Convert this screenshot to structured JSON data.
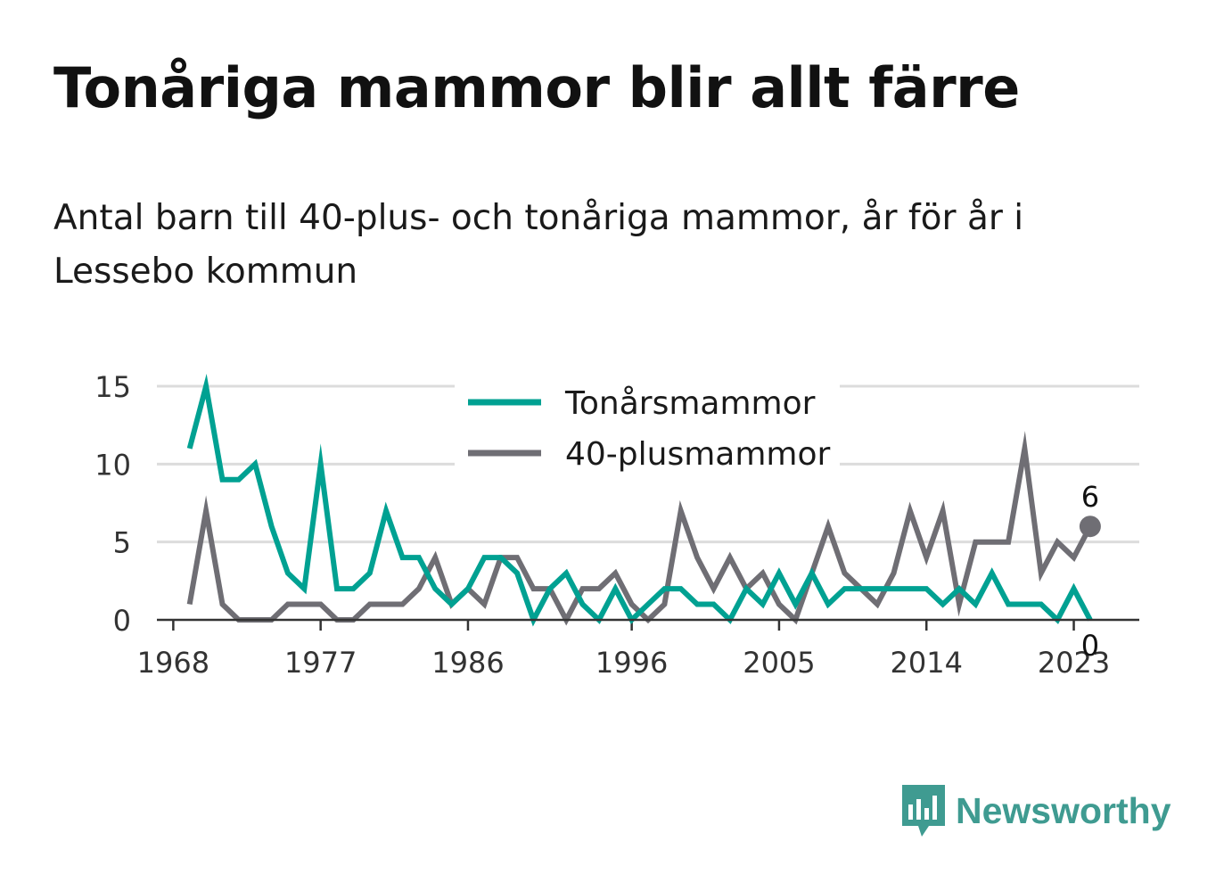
{
  "title": "Tonåriga mammor blir allt färre",
  "subtitle": "Antal barn till 40-plus- och tonåriga mammor, år för år i Lessebo kommun",
  "brand": {
    "name": "Newsworthy",
    "icon": "newsworthy-logo-icon",
    "color": "#3f9b91"
  },
  "chart_data": {
    "type": "line",
    "title": "Tonåriga mammor blir allt färre",
    "subtitle": "Antal barn till 40-plus- och tonåriga mammor, år för år i Lessebo kommun",
    "xlabel": "",
    "ylabel": "",
    "xlim": [
      1967,
      2027
    ],
    "ylim": [
      0,
      15
    ],
    "x_ticks": [
      1968,
      1977,
      1986,
      1996,
      2005,
      2014,
      2023
    ],
    "y_ticks": [
      0,
      5,
      10,
      15
    ],
    "grid": "horizontal",
    "legend_position": "top-center",
    "x": [
      1969,
      1970,
      1971,
      1972,
      1973,
      1974,
      1975,
      1976,
      1977,
      1978,
      1979,
      1980,
      1981,
      1982,
      1983,
      1984,
      1985,
      1986,
      1987,
      1988,
      1989,
      1990,
      1991,
      1992,
      1993,
      1994,
      1995,
      1996,
      1997,
      1998,
      1999,
      2000,
      2001,
      2002,
      2003,
      2004,
      2005,
      2006,
      2007,
      2008,
      2009,
      2010,
      2011,
      2012,
      2013,
      2014,
      2015,
      2016,
      2017,
      2018,
      2019,
      2020,
      2021,
      2022,
      2023,
      2024
    ],
    "series": [
      {
        "name": "Tonårsmammor",
        "color": "#00a192",
        "values": [
          11,
          15,
          9,
          9,
          10,
          6,
          3,
          2,
          10,
          2,
          2,
          3,
          7,
          4,
          4,
          2,
          1,
          2,
          4,
          4,
          3,
          0,
          2,
          3,
          1,
          0,
          2,
          0,
          1,
          2,
          2,
          1,
          1,
          0,
          2,
          1,
          3,
          1,
          3,
          1,
          2,
          2,
          2,
          2,
          2,
          2,
          1,
          2,
          1,
          3,
          1,
          1,
          1,
          0,
          2,
          0
        ],
        "end_label": "0"
      },
      {
        "name": "40-plusmammor",
        "color": "#6f6e74",
        "values": [
          1,
          7,
          1,
          0,
          0,
          0,
          1,
          1,
          1,
          0,
          0,
          1,
          1,
          1,
          2,
          4,
          1,
          2,
          1,
          4,
          4,
          2,
          2,
          0,
          2,
          2,
          3,
          1,
          0,
          1,
          7,
          4,
          2,
          4,
          2,
          3,
          1,
          0,
          3,
          6,
          3,
          2,
          1,
          3,
          7,
          4,
          7,
          1,
          5,
          5,
          5,
          11,
          3,
          5,
          4,
          6
        ],
        "end_label": "6"
      }
    ]
  }
}
